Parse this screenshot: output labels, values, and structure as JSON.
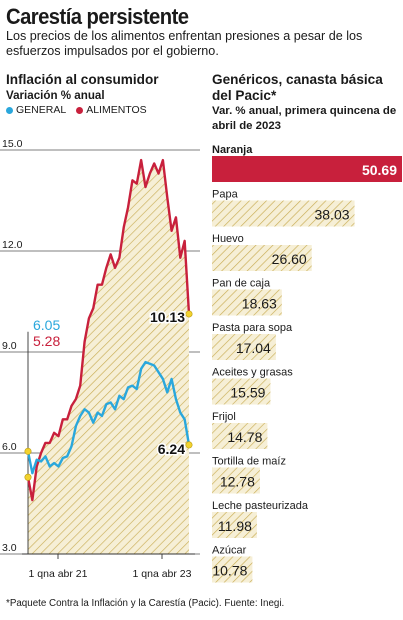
{
  "header": {
    "title": "Carestía persistente",
    "subtitle": "Los precios de los alimentos enfrentan presiones a pesar de los esfuerzos impulsados por el gobierno."
  },
  "left_panel": {
    "title": "Inflación al consumidor",
    "subtitle": "Variación % anual",
    "legend": [
      {
        "label": "GENERAL",
        "color": "#2aa7dc"
      },
      {
        "label": "ALIMENTOS",
        "color": "#c8203c"
      }
    ]
  },
  "right_panel": {
    "title": "Genéricos, canasta básica del Pacic*",
    "subtitle": "Var. % anual, primera quincena de abril de 2023"
  },
  "footnote": "*Paquete Contra la Inflación y la Carestía (Pacic). Fuente: Inegi.",
  "colors": {
    "general": "#2aa7dc",
    "alimentos": "#c8203c",
    "hatch_fill": "#f6efd6",
    "hatch_line": "#c9ad55",
    "highlight_bar": "#c8203c",
    "end_marker": "#f2d22e"
  },
  "chart_data": [
    {
      "type": "area",
      "ylabel": "Variación % anual",
      "ylim": [
        3.0,
        15.0
      ],
      "y_ticks": [
        "15.0",
        "12.0",
        "9.0",
        "6.0",
        "3.0"
      ],
      "x_ticks": [
        "1 qna abr 21",
        "1 qna abr 23"
      ],
      "grid": true,
      "legend_position": "top-left",
      "start_labels": {
        "general": "6.05",
        "alimentos": "5.28"
      },
      "end_labels": {
        "general": "6.24",
        "alimentos": "10.13"
      },
      "series": [
        {
          "name": "GENERAL",
          "values": [
            6.05,
            5.4,
            5.8,
            5.75,
            5.9,
            5.6,
            5.7,
            5.6,
            5.85,
            5.9,
            6.2,
            6.8,
            7.1,
            7.3,
            7.2,
            6.9,
            7.2,
            7.1,
            7.45,
            7.5,
            7.3,
            7.7,
            7.6,
            7.95,
            8.0,
            7.9,
            8.5,
            8.7,
            8.65,
            8.6,
            8.4,
            8.2,
            7.8,
            8.2,
            7.6,
            7.2,
            7.0,
            6.24
          ]
        },
        {
          "name": "ALIMENTOS",
          "values": [
            5.28,
            4.6,
            5.6,
            6.0,
            6.3,
            6.3,
            6.6,
            6.5,
            7.0,
            7.0,
            7.4,
            7.6,
            8.0,
            9.3,
            10.0,
            10.3,
            11.0,
            11.0,
            11.5,
            11.9,
            11.5,
            11.8,
            12.7,
            13.3,
            14.1,
            14.0,
            14.7,
            13.9,
            14.3,
            14.6,
            14.3,
            14.7,
            13.6,
            12.6,
            13.0,
            11.8,
            12.3,
            10.13
          ]
        }
      ]
    },
    {
      "type": "bar",
      "orientation": "horizontal",
      "title": "Genéricos, canasta básica del Pacic*",
      "subtitle": "Var. % anual, primera quincena de abril de 2023",
      "categories": [
        "Naranja",
        "Papa",
        "Huevo",
        "Pan de caja",
        "Pasta para sopa",
        "Aceites y grasas",
        "Frijol",
        "Tortilla de maíz",
        "Leche pasteurizada",
        "Azúcar"
      ],
      "values": [
        50.69,
        38.03,
        26.6,
        18.63,
        17.04,
        15.59,
        14.78,
        12.78,
        11.98,
        10.78
      ],
      "value_labels": [
        "50.69",
        "38.03",
        "26.60",
        "18.63",
        "17.04",
        "15.59",
        "14.78",
        "12.78",
        "11.98",
        "10.78"
      ],
      "highlight": "Naranja"
    }
  ]
}
